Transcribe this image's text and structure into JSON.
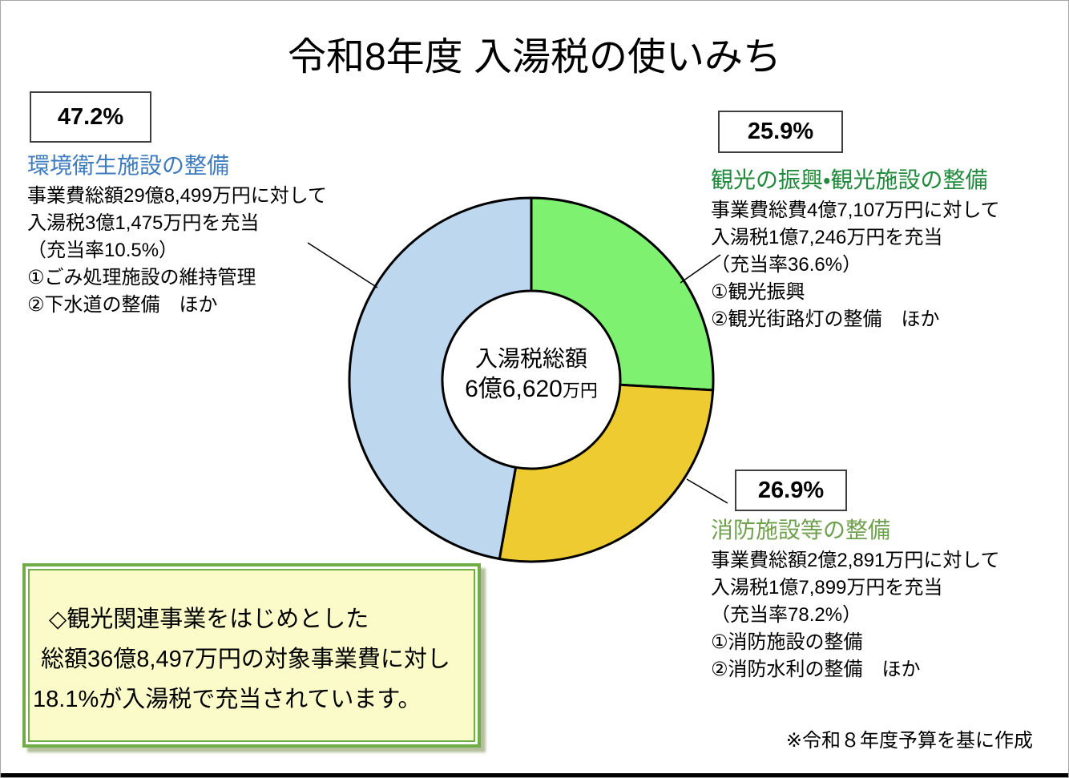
{
  "title": "令和8年度 入湯税の使いみち",
  "chart_data": {
    "type": "pie",
    "donut": true,
    "title": "令和8年度 入湯税の使いみち",
    "direction": "clockwise",
    "start_angle_deg": 0,
    "segments": [
      {
        "label": "観光の振興・観光施設の整備",
        "percent": 25.9,
        "color": "#7FF170"
      },
      {
        "label": "消防施設等の整備",
        "percent": 26.9,
        "color": "#EFCB32"
      },
      {
        "label": "環境衛生施設の整備",
        "percent": 47.2,
        "color": "#BDD7EE"
      }
    ],
    "center": {
      "title": "入湯税総額",
      "amount": "6億6,620",
      "unit": "万円"
    },
    "outline_color": "#000000"
  },
  "sections": {
    "kankyo": {
      "percent": "47.2%",
      "heading": "環境衛生施設の整備",
      "heading_color": "#3E7CBF",
      "lines": [
        "事業費総額29億8,499万円に対して",
        "入湯税3億1,475万円を充当",
        "（充当率10.5%）",
        "①ごみ処理施設の維持管理",
        "②下水道の整備　ほか"
      ]
    },
    "kanko": {
      "percent": "25.9%",
      "heading": "観光の振興・観光施設の整備",
      "heading_color": "#218A3C",
      "lines": [
        "事業費総費4億7,107万円に対して",
        "入湯税1億7,246万円を充当",
        "（充当率36.6%）",
        "①観光振興",
        "②観光街路灯の整備　ほか"
      ]
    },
    "shobo": {
      "percent": "26.9%",
      "heading": "消防施設等の整備",
      "heading_color": "#6FA04D",
      "lines": [
        "事業費総額2億2,891万円に対して",
        "入湯税1億7,899万円を充当",
        "（充当率78.2%）",
        "①消防施設の整備",
        "②消防水利の整備　ほか"
      ]
    }
  },
  "note_box": {
    "lines": [
      "◇観光関連事業をはじめとした",
      "総額36億8,497万円の対象事業費に対し",
      "18.1%が入湯税で充当されています。"
    ],
    "background": "#FBFBC9",
    "border_color": "#70AD47"
  },
  "footnote": "※令和８年度予算を基に作成"
}
